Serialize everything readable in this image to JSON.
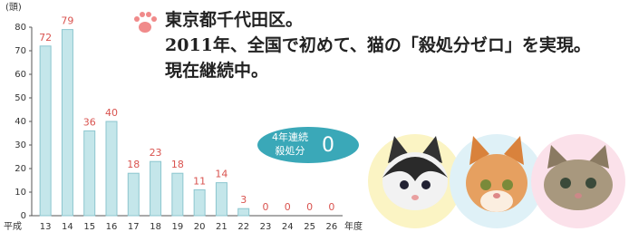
{
  "chart_data": {
    "type": "bar",
    "ylabel": "(頭)",
    "x_prefix": "平成",
    "x_suffix": "年度",
    "categories": [
      "13",
      "14",
      "15",
      "16",
      "17",
      "18",
      "19",
      "20",
      "21",
      "22",
      "23",
      "24",
      "25",
      "26"
    ],
    "values": [
      72,
      79,
      36,
      40,
      18,
      23,
      18,
      11,
      14,
      3,
      0,
      0,
      0,
      0
    ],
    "color": "#c4e6ea",
    "label_color": "#d9534f",
    "ylim": [
      0,
      80
    ],
    "yticks": [
      0,
      10,
      20,
      30,
      40,
      50,
      60,
      70,
      80
    ],
    "grid": false
  },
  "headline": {
    "line1": "東京都千代田区。",
    "line2": "2011年、全国で初めて、猫の「殺処分ゼロ」を実現。",
    "line3": "現在継続中。"
  },
  "badge": {
    "line1": "4年連続",
    "line2": "殺処分",
    "value": "0"
  }
}
